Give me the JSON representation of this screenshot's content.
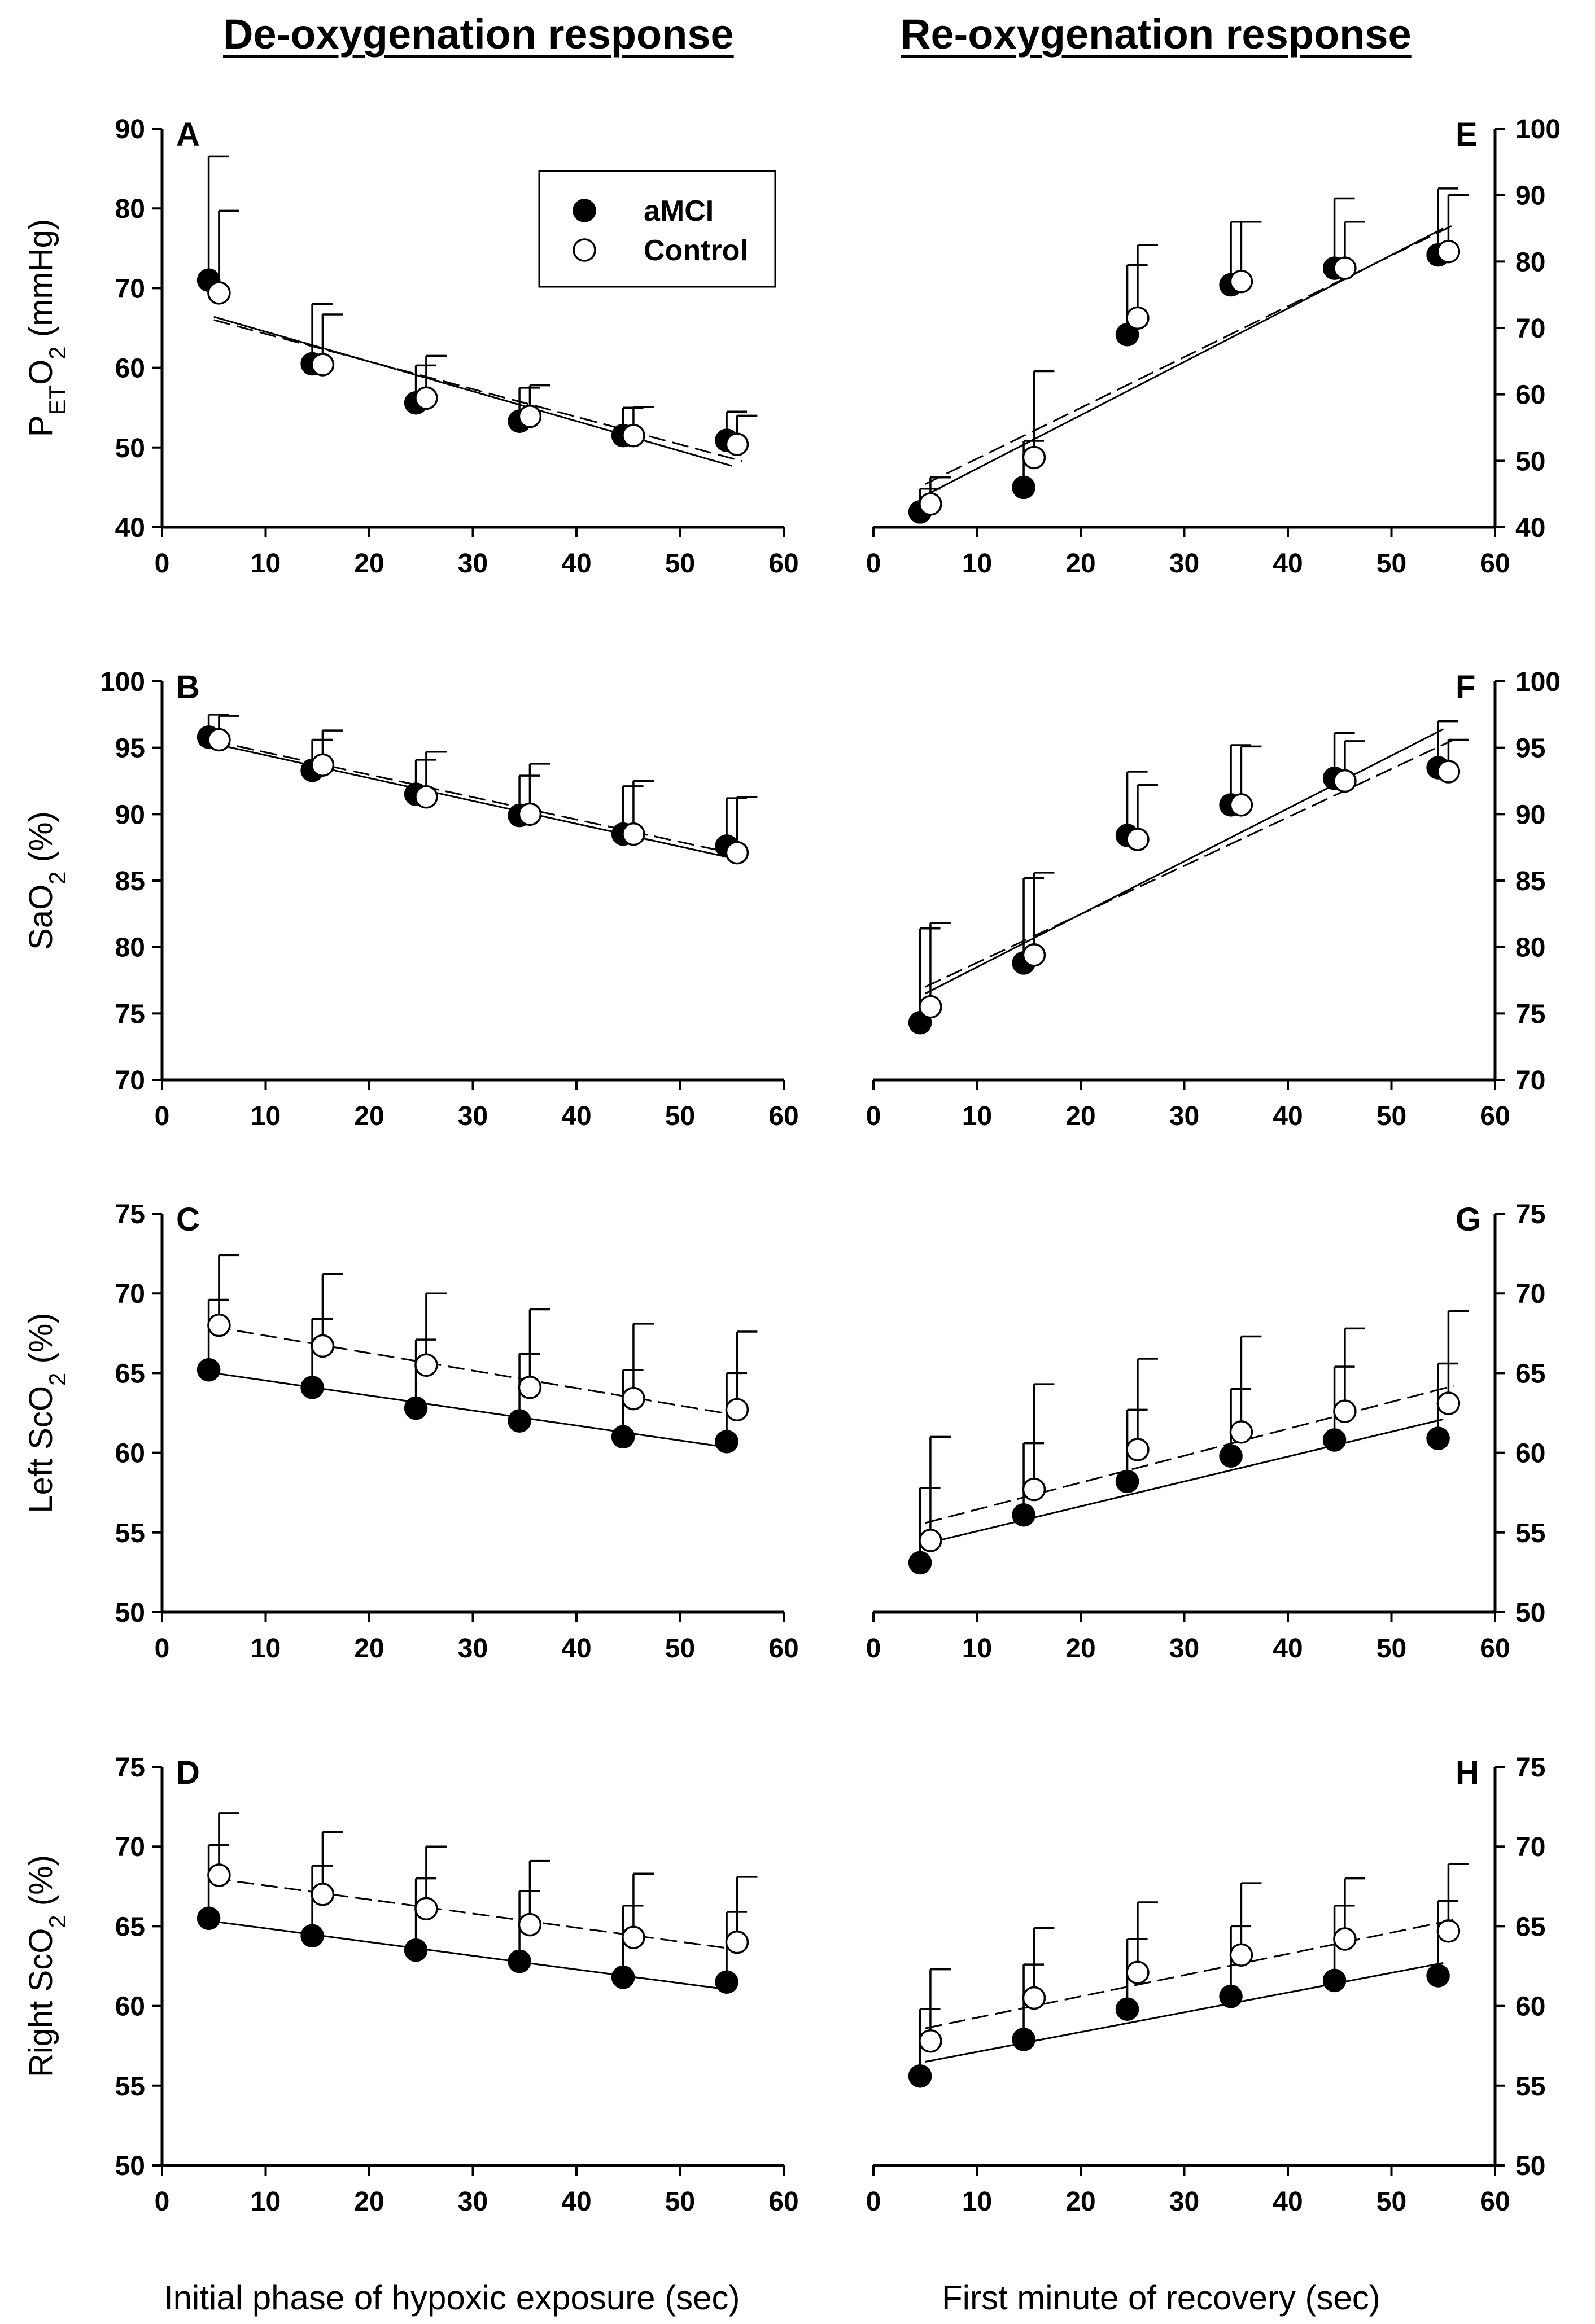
{
  "titles": {
    "left": "De-oxygenation response",
    "right": "Re-oxygenation response"
  },
  "xaxis_titles": {
    "left": "Initial phase of hypoxic exposure (sec)",
    "right": "First minute of recovery (sec)"
  },
  "legend": {
    "amci": "aMCI",
    "control": "Control"
  },
  "colors": {
    "amci_fill": "#000000",
    "control_fill": "#ffffff",
    "axis": "#000000"
  },
  "chart_data": [
    {
      "panel": "A",
      "type": "scatter",
      "ylabel_parts": [
        "P",
        "ET",
        "O",
        "2",
        " (mmHg)"
      ],
      "ylabel": "PETO2 (mmHg)",
      "xlim": [
        0,
        60
      ],
      "ylim": [
        40,
        90
      ],
      "xticks": [
        0,
        10,
        20,
        30,
        40,
        50,
        60
      ],
      "yticks": [
        40,
        50,
        60,
        70,
        80,
        90
      ],
      "yaxis_side": "left",
      "legend": true,
      "series": [
        {
          "name": "aMCI",
          "x": [
            4.5,
            14.5,
            24.5,
            34.5,
            44.5,
            54.5
          ],
          "y": [
            71.0,
            60.5,
            55.6,
            53.3,
            51.5,
            50.9
          ],
          "error": [
            15.5,
            7.5,
            4.7,
            4.2,
            3.5,
            3.6
          ],
          "fit": [
            [
              5,
              66.4
            ],
            [
              55,
              47.7
            ]
          ]
        },
        {
          "name": "Control",
          "x": [
            5.5,
            15.5,
            25.5,
            35.5,
            45.5,
            55.5
          ],
          "y": [
            69.4,
            60.4,
            56.2,
            53.9,
            51.5,
            50.4
          ],
          "error": [
            10.3,
            6.3,
            5.3,
            3.9,
            3.6,
            3.6
          ],
          "fit": [
            [
              5,
              66.0
            ],
            [
              56,
              48.3
            ]
          ]
        }
      ]
    },
    {
      "panel": "B",
      "type": "scatter",
      "ylabel_parts": [
        "SaO",
        "2",
        " (%)"
      ],
      "ylabel": "SaO2 (%)",
      "xlim": [
        0,
        60
      ],
      "ylim": [
        70,
        100
      ],
      "xticks": [
        0,
        10,
        20,
        30,
        40,
        50,
        60
      ],
      "yticks": [
        70,
        75,
        80,
        85,
        90,
        95,
        100
      ],
      "yaxis_side": "left",
      "legend": false,
      "series": [
        {
          "name": "aMCI",
          "x": [
            4.5,
            14.5,
            24.5,
            34.5,
            44.5,
            54.5
          ],
          "y": [
            95.8,
            93.3,
            91.5,
            89.9,
            88.5,
            87.6
          ],
          "error": [
            1.7,
            2.3,
            2.6,
            3.0,
            3.6,
            3.6
          ],
          "fit": [
            [
              5,
              95.3
            ],
            [
              55,
              86.7
            ]
          ]
        },
        {
          "name": "Control",
          "x": [
            5.5,
            15.5,
            25.5,
            35.5,
            45.5,
            55.5
          ],
          "y": [
            95.6,
            93.7,
            91.3,
            90.0,
            88.5,
            87.1
          ],
          "error": [
            1.8,
            2.6,
            3.4,
            3.8,
            4.0,
            4.2
          ],
          "fit": [
            [
              5,
              95.5
            ],
            [
              56,
              86.9
            ]
          ]
        }
      ]
    },
    {
      "panel": "C",
      "type": "scatter",
      "ylabel_parts": [
        "Left ScO",
        "2",
        " (%)"
      ],
      "ylabel": "Left ScO2 (%)",
      "xlim": [
        0,
        60
      ],
      "ylim": [
        50,
        75
      ],
      "xticks": [
        0,
        10,
        20,
        30,
        40,
        50,
        60
      ],
      "yticks": [
        50,
        55,
        60,
        65,
        70,
        75
      ],
      "yaxis_side": "left",
      "legend": false,
      "series": [
        {
          "name": "aMCI",
          "x": [
            4.5,
            14.5,
            24.5,
            34.5,
            44.5,
            54.5
          ],
          "y": [
            65.2,
            64.1,
            62.8,
            62.0,
            61.0,
            60.7
          ],
          "error": [
            4.4,
            4.3,
            4.3,
            4.2,
            4.2,
            4.3
          ],
          "fit": [
            [
              5,
              65.0
            ],
            [
              55,
              60.3
            ]
          ]
        },
        {
          "name": "Control",
          "x": [
            5.5,
            15.5,
            25.5,
            35.5,
            45.5,
            55.5
          ],
          "y": [
            68.0,
            66.7,
            65.5,
            64.1,
            63.4,
            62.7
          ],
          "error": [
            4.4,
            4.5,
            4.5,
            4.9,
            4.7,
            4.9
          ],
          "fit": [
            [
              5,
              67.9
            ],
            [
              56,
              62.3
            ]
          ]
        }
      ]
    },
    {
      "panel": "D",
      "type": "scatter",
      "ylabel_parts": [
        "Right ScO",
        "2",
        " (%)"
      ],
      "ylabel": "Right ScO2 (%)",
      "xlim": [
        0,
        60
      ],
      "ylim": [
        50,
        75
      ],
      "xticks": [
        0,
        10,
        20,
        30,
        40,
        50,
        60
      ],
      "yticks": [
        50,
        55,
        60,
        65,
        70,
        75
      ],
      "yaxis_side": "left",
      "legend": false,
      "series": [
        {
          "name": "aMCI",
          "x": [
            4.5,
            14.5,
            24.5,
            34.5,
            44.5,
            54.5
          ],
          "y": [
            65.5,
            64.4,
            63.5,
            62.8,
            61.8,
            61.5
          ],
          "error": [
            4.6,
            4.4,
            4.5,
            4.4,
            4.5,
            4.4
          ],
          "fit": [
            [
              5,
              65.3
            ],
            [
              55,
              61.0
            ]
          ]
        },
        {
          "name": "Control",
          "x": [
            5.5,
            15.5,
            25.5,
            35.5,
            45.5,
            55.5
          ],
          "y": [
            68.2,
            67.0,
            66.1,
            65.1,
            64.3,
            64.0
          ],
          "error": [
            3.9,
            3.9,
            3.9,
            4.0,
            4.0,
            4.1
          ],
          "fit": [
            [
              5,
              68.0
            ],
            [
              56,
              63.5
            ]
          ]
        }
      ]
    },
    {
      "panel": "E",
      "type": "scatter",
      "xlim": [
        0,
        60
      ],
      "ylim": [
        40,
        100
      ],
      "xticks": [
        0,
        10,
        20,
        30,
        40,
        50,
        60
      ],
      "yticks": [
        40,
        50,
        60,
        70,
        80,
        90,
        100
      ],
      "yaxis_side": "right",
      "legend": false,
      "series": [
        {
          "name": "aMCI",
          "x": [
            4.5,
            14.5,
            24.5,
            34.5,
            44.5,
            54.5
          ],
          "y": [
            42.3,
            46.0,
            69.0,
            76.5,
            79.0,
            81.0
          ],
          "error": [
            3.5,
            7.0,
            10.5,
            9.5,
            10.5,
            10.0
          ],
          "fit": [
            [
              5,
              44.8
            ],
            [
              55,
              85.0
            ]
          ]
        },
        {
          "name": "Control",
          "x": [
            5.5,
            15.5,
            25.5,
            35.5,
            45.5,
            55.5
          ],
          "y": [
            43.5,
            50.5,
            71.5,
            77.0,
            79.0,
            81.5
          ],
          "error": [
            4.0,
            13.0,
            11.0,
            9.0,
            7.0,
            8.5
          ],
          "fit": [
            [
              5,
              46.5
            ],
            [
              56,
              85.5
            ]
          ]
        }
      ]
    },
    {
      "panel": "F",
      "type": "scatter",
      "xlim": [
        0,
        60
      ],
      "ylim": [
        70,
        100
      ],
      "xticks": [
        0,
        10,
        20,
        30,
        40,
        50,
        60
      ],
      "yticks": [
        70,
        75,
        80,
        85,
        90,
        95,
        100
      ],
      "yaxis_side": "right",
      "legend": false,
      "series": [
        {
          "name": "aMCI",
          "x": [
            4.5,
            14.5,
            24.5,
            34.5,
            44.5,
            54.5
          ],
          "y": [
            74.3,
            78.8,
            88.4,
            90.7,
            92.7,
            93.5
          ],
          "error": [
            7.1,
            6.4,
            4.8,
            4.5,
            3.4,
            3.5
          ],
          "fit": [
            [
              5,
              76.5
            ],
            [
              55,
              96.4
            ]
          ]
        },
        {
          "name": "Control",
          "x": [
            5.5,
            15.5,
            25.5,
            35.5,
            45.5,
            55.5
          ],
          "y": [
            75.5,
            79.4,
            88.1,
            90.7,
            92.5,
            93.2
          ],
          "error": [
            6.3,
            6.2,
            4.1,
            4.4,
            3.0,
            2.4
          ],
          "fit": [
            [
              5,
              77.0
            ],
            [
              56,
              95.6
            ]
          ]
        }
      ]
    },
    {
      "panel": "G",
      "type": "scatter",
      "xlim": [
        0,
        60
      ],
      "ylim": [
        50,
        75
      ],
      "xticks": [
        0,
        10,
        20,
        30,
        40,
        50,
        60
      ],
      "yticks": [
        50,
        55,
        60,
        65,
        70,
        75
      ],
      "yaxis_side": "right",
      "legend": false,
      "series": [
        {
          "name": "aMCI",
          "x": [
            4.5,
            14.5,
            24.5,
            34.5,
            44.5,
            54.5
          ],
          "y": [
            53.1,
            56.1,
            58.2,
            59.8,
            60.8,
            60.9
          ],
          "error": [
            4.7,
            4.5,
            4.5,
            4.2,
            4.6,
            4.7
          ],
          "fit": [
            [
              5,
              54.3
            ],
            [
              55,
              62.1
            ]
          ]
        },
        {
          "name": "Control",
          "x": [
            5.5,
            15.5,
            25.5,
            35.5,
            45.5,
            55.5
          ],
          "y": [
            54.5,
            57.7,
            60.2,
            61.3,
            62.6,
            63.1
          ],
          "error": [
            6.5,
            6.6,
            5.7,
            6.0,
            5.2,
            5.8
          ],
          "fit": [
            [
              5,
              55.6
            ],
            [
              56,
              64.2
            ]
          ]
        }
      ]
    },
    {
      "panel": "H",
      "type": "scatter",
      "xlim": [
        0,
        60
      ],
      "ylim": [
        50,
        75
      ],
      "xticks": [
        0,
        10,
        20,
        30,
        40,
        50,
        60
      ],
      "yticks": [
        50,
        55,
        60,
        65,
        70,
        75
      ],
      "yaxis_side": "right",
      "legend": false,
      "series": [
        {
          "name": "aMCI",
          "x": [
            4.5,
            14.5,
            24.5,
            34.5,
            44.5,
            54.5
          ],
          "y": [
            55.6,
            57.9,
            59.8,
            60.6,
            61.6,
            61.9
          ],
          "error": [
            4.2,
            4.7,
            4.4,
            4.4,
            4.7,
            4.7
          ],
          "fit": [
            [
              5,
              56.5
            ],
            [
              55,
              62.7
            ]
          ]
        },
        {
          "name": "Control",
          "x": [
            5.5,
            15.5,
            25.5,
            35.5,
            45.5,
            55.5
          ],
          "y": [
            57.8,
            60.5,
            62.1,
            63.2,
            64.2,
            64.7
          ],
          "error": [
            4.5,
            4.4,
            4.4,
            4.5,
            3.8,
            4.2
          ],
          "fit": [
            [
              5,
              58.6
            ],
            [
              56,
              65.4
            ]
          ]
        }
      ]
    }
  ]
}
